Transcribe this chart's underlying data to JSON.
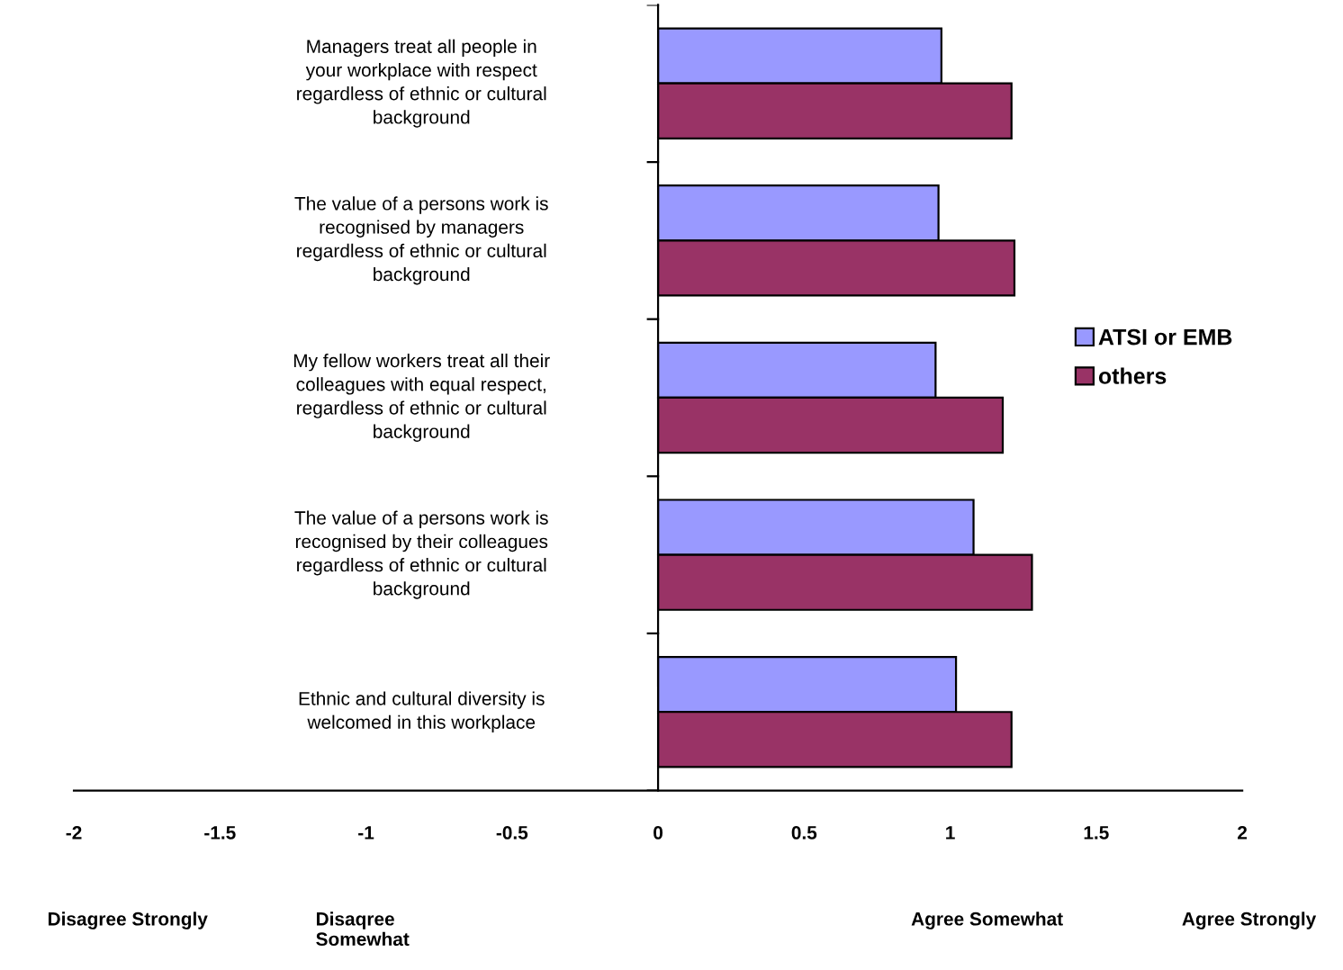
{
  "chart_data": {
    "type": "bar",
    "orientation": "horizontal",
    "categories": [
      "Managers treat all people in\nyour workplace with respect\nregardless of ethnic or cultural\nbackground",
      "The value of a persons work is\nrecognised by managers\nregardless of ethnic or cultural\nbackground",
      "My fellow workers treat all their\ncolleagues with equal respect,\nregardless of ethnic or cultural\nbackground",
      "The value of a persons work is\nrecognised by their colleagues\nregardless of ethnic or cultural\nbackground",
      "Ethnic and cultural diversity is\nwelcomed in this workplace"
    ],
    "series": [
      {
        "name": "ATSI or EMB",
        "color": "#9999ff",
        "values": [
          0.97,
          0.96,
          0.95,
          1.08,
          1.02
        ]
      },
      {
        "name": "others",
        "color": "#993366",
        "values": [
          1.21,
          1.22,
          1.18,
          1.28,
          1.21
        ]
      }
    ],
    "xlim": [
      -2,
      2
    ],
    "xticks": [
      -2,
      -1.5,
      -1,
      -0.5,
      0,
      0.5,
      1,
      1.5,
      2
    ],
    "annotations": [
      "Disagree Strongly",
      "Disaqree\nSomewhat",
      "Agree Somewhat",
      "Agree Strongly"
    ],
    "legend": "right"
  }
}
